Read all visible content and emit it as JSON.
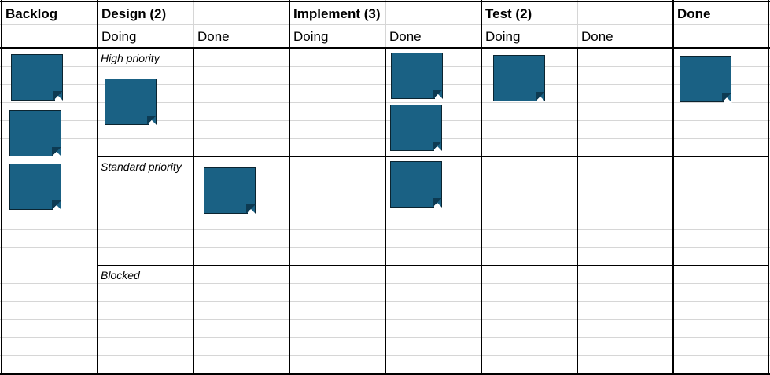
{
  "columns": {
    "backlog": "Backlog",
    "design": "Design (2)",
    "implement": "Implement (3)",
    "test": "Test (2)",
    "done": "Done"
  },
  "subcolumns": {
    "design_doing": "Doing",
    "design_done": "Done",
    "implement_doing": "Doing",
    "implement_done": "Done",
    "test_doing": "Doing",
    "test_done": "Done"
  },
  "lanes": {
    "high": "High priority",
    "standard": "Standard priority",
    "blocked": "Blocked"
  },
  "colors": {
    "note_fill": "#1a6184",
    "note_border": "#0b2430",
    "gridline": "#d6d6d6",
    "border": "#000000"
  }
}
